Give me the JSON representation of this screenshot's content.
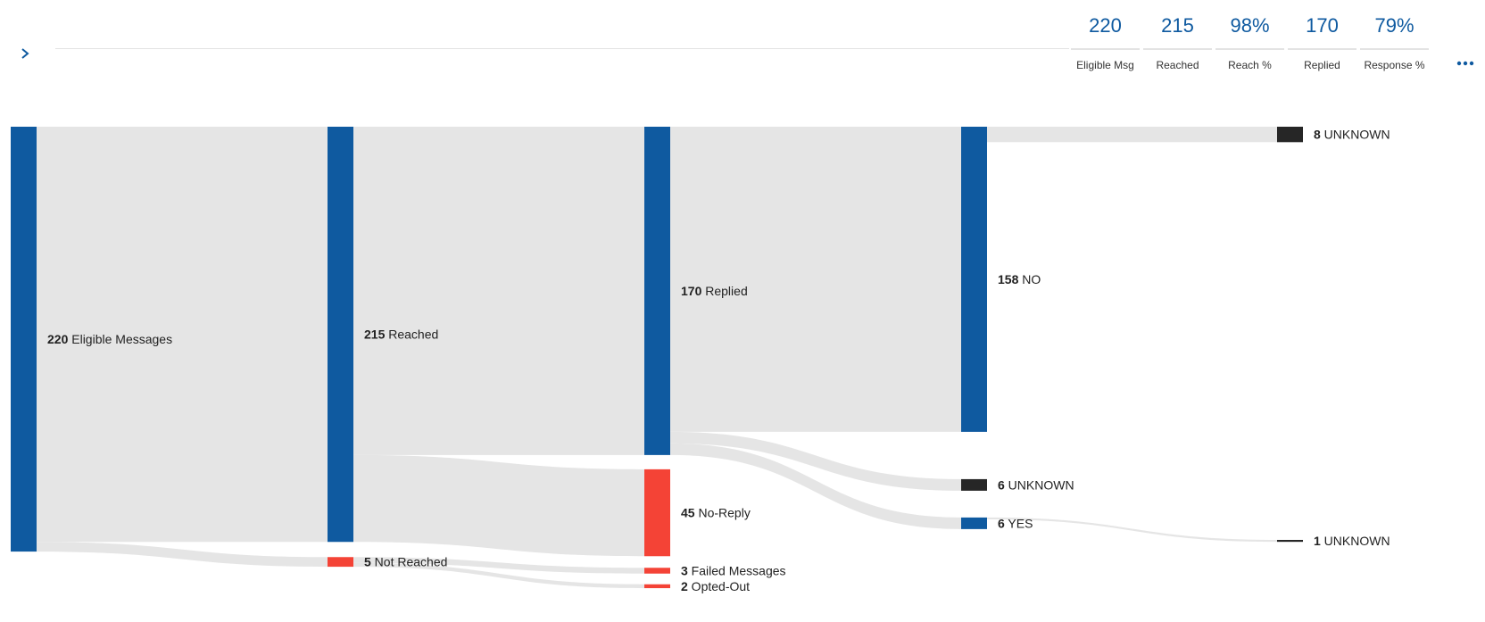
{
  "toolbar": {
    "expand_icon": "chevron-right-icon",
    "more_icon": "more-horizontal-icon"
  },
  "kpis": [
    {
      "value": "220",
      "label": "Eligible Msg"
    },
    {
      "value": "215",
      "label": "Reached"
    },
    {
      "value": "98%",
      "label": "Reach %"
    },
    {
      "value": "170",
      "label": "Replied"
    },
    {
      "value": "79%",
      "label": "Response %"
    }
  ],
  "colors": {
    "accent": "#0f5aa0",
    "negative": "#f44336",
    "unknown": "#262626",
    "link": "#e5e5e5"
  },
  "chart_data": {
    "type": "sankey",
    "nodes": [
      {
        "id": "eligible",
        "value": 220,
        "label": "Eligible Messages",
        "stage": 0,
        "kind": "accent"
      },
      {
        "id": "reached",
        "value": 215,
        "label": "Reached",
        "stage": 1,
        "kind": "accent"
      },
      {
        "id": "not_reached",
        "value": 5,
        "label": "Not Reached",
        "stage": 1,
        "kind": "negative"
      },
      {
        "id": "replied",
        "value": 170,
        "label": "Replied",
        "stage": 2,
        "kind": "accent"
      },
      {
        "id": "no_reply",
        "value": 45,
        "label": "No-Reply",
        "stage": 2,
        "kind": "negative"
      },
      {
        "id": "failed",
        "value": 3,
        "label": "Failed Messages",
        "stage": 2,
        "kind": "negative"
      },
      {
        "id": "opted_out",
        "value": 2,
        "label": "Opted-Out",
        "stage": 2,
        "kind": "negative"
      },
      {
        "id": "no",
        "value": 158,
        "label": "NO",
        "stage": 3,
        "kind": "accent"
      },
      {
        "id": "unknown_a",
        "value": 6,
        "label": "UNKNOWN",
        "stage": 3,
        "kind": "unknown"
      },
      {
        "id": "yes",
        "value": 6,
        "label": "YES",
        "stage": 3,
        "kind": "accent"
      },
      {
        "id": "unknown_b",
        "value": 8,
        "label": "UNKNOWN",
        "stage": 4,
        "kind": "unknown"
      },
      {
        "id": "unknown_c",
        "value": 1,
        "label": "UNKNOWN",
        "stage": 4,
        "kind": "unknown"
      }
    ],
    "links": [
      {
        "source": "eligible",
        "target": "reached",
        "value": 215
      },
      {
        "source": "eligible",
        "target": "not_reached",
        "value": 5
      },
      {
        "source": "reached",
        "target": "replied",
        "value": 170
      },
      {
        "source": "reached",
        "target": "no_reply",
        "value": 45
      },
      {
        "source": "not_reached",
        "target": "failed",
        "value": 3
      },
      {
        "source": "not_reached",
        "target": "opted_out",
        "value": 2
      },
      {
        "source": "replied",
        "target": "no",
        "value": 158
      },
      {
        "source": "replied",
        "target": "unknown_a",
        "value": 6
      },
      {
        "source": "replied",
        "target": "yes",
        "value": 6
      },
      {
        "source": "no",
        "target": "unknown_b",
        "value": 8
      },
      {
        "source": "yes",
        "target": "unknown_c",
        "value": 1
      }
    ]
  }
}
